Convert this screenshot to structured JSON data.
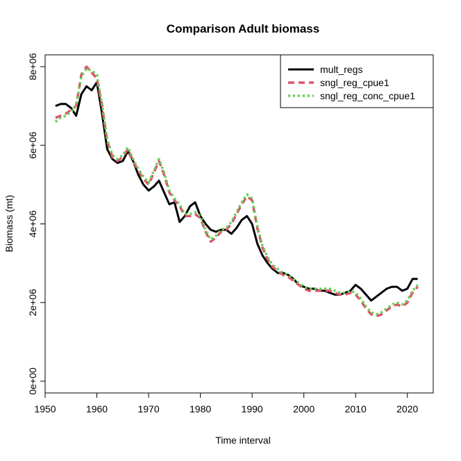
{
  "chart_data": {
    "type": "line",
    "title": "Comparison Adult biomass",
    "xlabel": "Time interval",
    "ylabel": "Biomass (mt)",
    "xlim": [
      1950,
      2025
    ],
    "ylim": [
      -300000,
      8300000
    ],
    "x_ticks": [
      1950,
      1960,
      1970,
      1980,
      1990,
      2000,
      2010,
      2020
    ],
    "x_tick_labels": [
      "1950",
      "1960",
      "1970",
      "1980",
      "1990",
      "2000",
      "2010",
      "2020"
    ],
    "y_ticks": [
      0,
      2000000,
      4000000,
      6000000,
      8000000
    ],
    "y_tick_labels": [
      "0e+00",
      "2e+06",
      "4e+06",
      "6e+06",
      "8e+06"
    ],
    "grid": false,
    "legend_position": "top-right",
    "series": [
      {
        "name": "mult_regs",
        "color": "#000000",
        "style": "solid",
        "x": [
          1952,
          1953,
          1954,
          1955,
          1956,
          1957,
          1958,
          1959,
          1960,
          1961,
          1962,
          1963,
          1964,
          1965,
          1966,
          1967,
          1968,
          1969,
          1970,
          1971,
          1972,
          1973,
          1974,
          1975,
          1976,
          1977,
          1978,
          1979,
          1980,
          1981,
          1982,
          1983,
          1984,
          1985,
          1986,
          1987,
          1988,
          1989,
          1990,
          1991,
          1992,
          1993,
          1994,
          1995,
          1996,
          1997,
          1998,
          1999,
          2000,
          2001,
          2002,
          2003,
          2004,
          2005,
          2006,
          2007,
          2008,
          2009,
          2010,
          2011,
          2012,
          2013,
          2014,
          2015,
          2016,
          2017,
          2018,
          2019,
          2020,
          2021,
          2022
        ],
        "y": [
          7000000,
          7050000,
          7050000,
          6950000,
          6750000,
          7300000,
          7500000,
          7400000,
          7600000,
          6800000,
          5900000,
          5650000,
          5550000,
          5600000,
          5850000,
          5600000,
          5250000,
          5000000,
          4850000,
          4950000,
          5100000,
          4800000,
          4500000,
          4550000,
          4050000,
          4200000,
          4450000,
          4550000,
          4200000,
          4000000,
          3850000,
          3800000,
          3850000,
          3850000,
          3750000,
          3900000,
          4100000,
          4200000,
          4000000,
          3500000,
          3200000,
          3000000,
          2850000,
          2750000,
          2750000,
          2700000,
          2600000,
          2450000,
          2400000,
          2350000,
          2350000,
          2300000,
          2300000,
          2250000,
          2200000,
          2200000,
          2250000,
          2300000,
          2450000,
          2350000,
          2200000,
          2050000,
          2150000,
          2250000,
          2350000,
          2400000,
          2400000,
          2300000,
          2350000,
          2600000,
          2600000
        ]
      },
      {
        "name": "sngl_reg_cpue1",
        "color": "#df536b",
        "style": "dashed",
        "x": [
          1952,
          1953,
          1954,
          1955,
          1956,
          1957,
          1958,
          1959,
          1960,
          1961,
          1962,
          1963,
          1964,
          1965,
          1966,
          1967,
          1968,
          1969,
          1970,
          1971,
          1972,
          1973,
          1974,
          1975,
          1976,
          1977,
          1978,
          1979,
          1980,
          1981,
          1982,
          1983,
          1984,
          1985,
          1986,
          1987,
          1988,
          1989,
          1990,
          1991,
          1992,
          1993,
          1994,
          1995,
          1996,
          1997,
          1998,
          1999,
          2000,
          2001,
          2002,
          2003,
          2004,
          2005,
          2006,
          2007,
          2008,
          2009,
          2010,
          2011,
          2012,
          2013,
          2014,
          2015,
          2016,
          2017,
          2018,
          2019,
          2020,
          2021,
          2022
        ],
        "y": [
          6700000,
          6750000,
          6800000,
          6900000,
          7000000,
          7800000,
          8000000,
          7850000,
          7700000,
          7000000,
          6100000,
          5700000,
          5600000,
          5700000,
          5900000,
          5600000,
          5350000,
          5150000,
          5000000,
          5300000,
          5600000,
          5250000,
          4800000,
          4600000,
          4450000,
          4200000,
          4200000,
          4250000,
          4150000,
          3800000,
          3550000,
          3650000,
          3800000,
          3850000,
          4000000,
          4250000,
          4500000,
          4700000,
          4600000,
          3900000,
          3400000,
          3100000,
          2900000,
          2800000,
          2700000,
          2650000,
          2550000,
          2450000,
          2350000,
          2300000,
          2300000,
          2300000,
          2300000,
          2300000,
          2250000,
          2200000,
          2200000,
          2250000,
          2200000,
          2050000,
          1850000,
          1700000,
          1650000,
          1700000,
          1800000,
          1900000,
          1950000,
          1900000,
          2000000,
          2250000,
          2400000
        ]
      },
      {
        "name": "sngl_reg_conc_cpue1",
        "color": "#61d04f",
        "style": "dotted",
        "x": [
          1952,
          1953,
          1954,
          1955,
          1956,
          1957,
          1958,
          1959,
          1960,
          1961,
          1962,
          1963,
          1964,
          1965,
          1966,
          1967,
          1968,
          1969,
          1970,
          1971,
          1972,
          1973,
          1974,
          1975,
          1976,
          1977,
          1978,
          1979,
          1980,
          1981,
          1982,
          1983,
          1984,
          1985,
          1986,
          1987,
          1988,
          1989,
          1990,
          1991,
          1992,
          1993,
          1994,
          1995,
          1996,
          1997,
          1998,
          1999,
          2000,
          2001,
          2002,
          2003,
          2004,
          2005,
          2006,
          2007,
          2008,
          2009,
          2010,
          2011,
          2012,
          2013,
          2014,
          2015,
          2016,
          2017,
          2018,
          2019,
          2020,
          2021,
          2022
        ],
        "y": [
          6600000,
          6700000,
          6750000,
          6850000,
          7000000,
          7750000,
          7950000,
          7900000,
          7800000,
          7050000,
          6150000,
          5750000,
          5650000,
          5750000,
          5950000,
          5650000,
          5400000,
          5200000,
          5050000,
          5350000,
          5650000,
          5300000,
          4850000,
          4650000,
          4500000,
          4250000,
          4250000,
          4300000,
          4200000,
          3850000,
          3600000,
          3700000,
          3850000,
          3900000,
          4050000,
          4300000,
          4550000,
          4750000,
          4650000,
          3950000,
          3450000,
          3150000,
          2950000,
          2850000,
          2750000,
          2700000,
          2600000,
          2500000,
          2400000,
          2350000,
          2350000,
          2350000,
          2350000,
          2350000,
          2300000,
          2250000,
          2250000,
          2300000,
          2250000,
          2100000,
          1900000,
          1750000,
          1700000,
          1750000,
          1850000,
          1950000,
          2000000,
          1950000,
          2050000,
          2300000,
          2450000
        ]
      }
    ]
  }
}
